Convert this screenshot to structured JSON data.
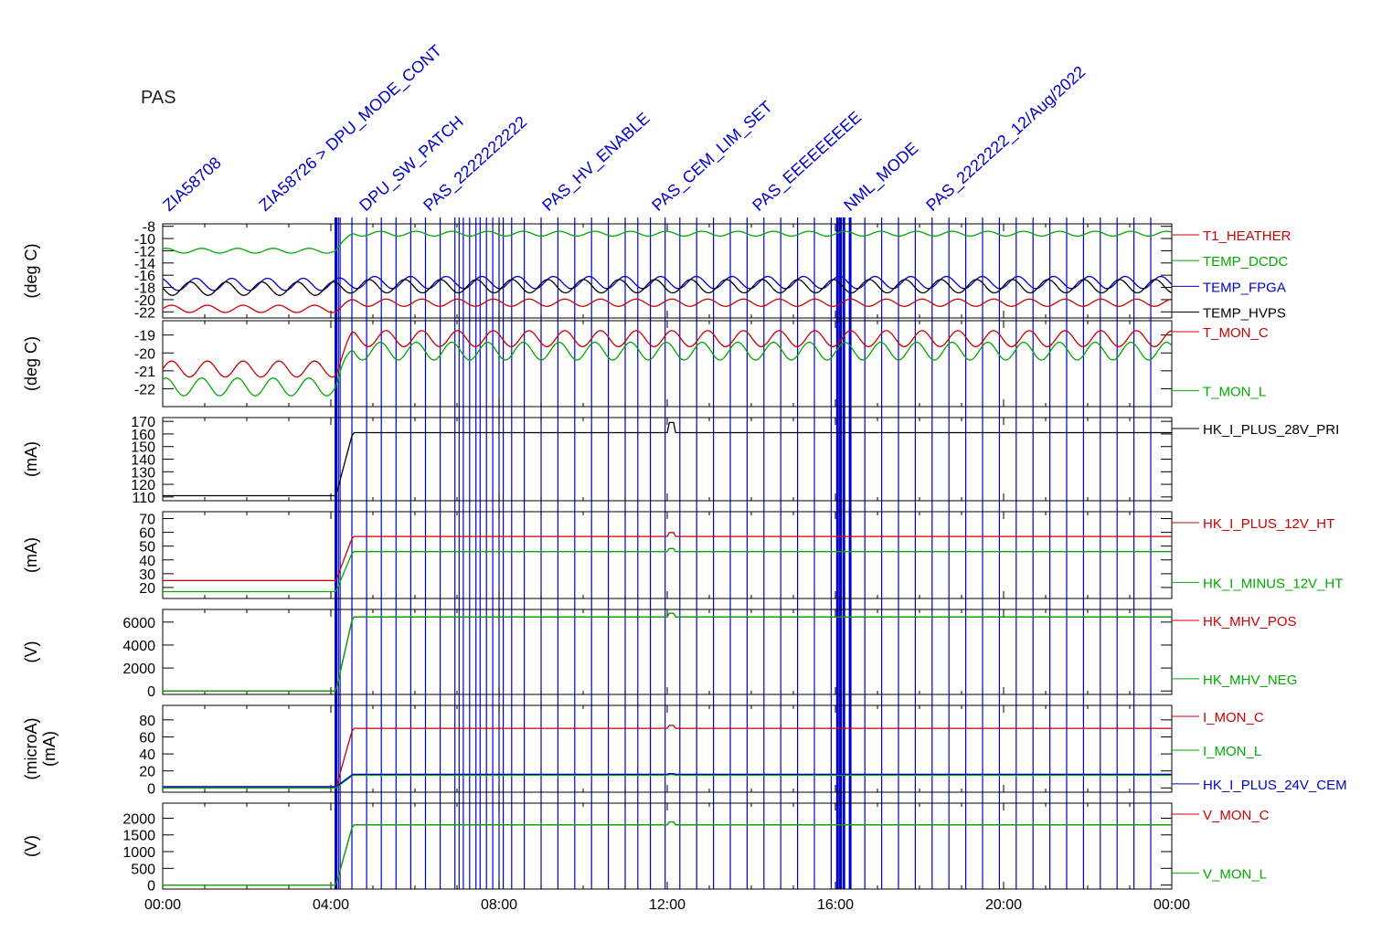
{
  "instrument": "PAS",
  "header_annotations": [
    "ZIA58708",
    "ZIA58726 > DPU_MODE_CONT",
    "DPU_SW_PATCH",
    "PAS_2222222222",
    "PAS_HV_ENABLE",
    "PAS_CEM_LIM_SET",
    "PAS_EEEEEEEEE",
    "NML_MODE",
    "PAS_2222222_12/Aug/2022"
  ],
  "time_axis": {
    "ticks": [
      "00:00",
      "04:00",
      "08:00",
      "12:00",
      "16:00",
      "20:00",
      "00:00"
    ],
    "range_hours": [
      0,
      24
    ]
  },
  "colors": {
    "red": "#cc0000",
    "green": "#00aa00",
    "blue": "#0000cc",
    "black": "#000000",
    "event": "#0000cc"
  },
  "chart_data": [
    {
      "type": "line",
      "ylabel": "(deg C)",
      "ylim": [
        -23,
        -7.6
      ],
      "yticks": [
        "-8",
        "-10",
        "-12",
        "-14",
        "-16",
        "-18",
        "-20",
        "-22"
      ],
      "yticks_values": [
        -8,
        -10,
        -12,
        -14,
        -16,
        -18,
        -20,
        -22
      ],
      "series": [
        {
          "name": "T1_HEATHER",
          "color": "red",
          "before": -21.5,
          "after": -20.5,
          "amp": 0.6
        },
        {
          "name": "TEMP_DCDC",
          "color": "green",
          "before": -12.0,
          "after": -9.2,
          "amp": 0.4
        },
        {
          "name": "TEMP_FPGA",
          "color": "blue",
          "before": -17.5,
          "after": -17.2,
          "amp": 1.0
        },
        {
          "name": "TEMP_HVPS",
          "color": "black",
          "before": -18.2,
          "after": -17.8,
          "amp": 1.1
        }
      ]
    },
    {
      "type": "line",
      "ylabel": "(deg C)",
      "ylim": [
        -23.0,
        -18.2
      ],
      "yticks": [
        "-19",
        "-20",
        "-21",
        "-22"
      ],
      "yticks_values": [
        -19,
        -20,
        -21,
        -22
      ],
      "series": [
        {
          "name": "T_MON_C",
          "color": "red",
          "before": -20.9,
          "after": -19.2,
          "amp": 0.45
        },
        {
          "name": "T_MON_L",
          "color": "green",
          "before": -21.9,
          "after": -19.9,
          "amp": 0.5
        }
      ]
    },
    {
      "type": "line",
      "ylabel": "(mA)",
      "ylim": [
        107,
        173
      ],
      "yticks": [
        "170",
        "160",
        "150",
        "140",
        "130",
        "120",
        "110"
      ],
      "yticks_values": [
        170,
        160,
        150,
        140,
        130,
        120,
        110
      ],
      "series": [
        {
          "name": "HK_I_PLUS_28V_PRI",
          "color": "black",
          "before": 111,
          "after": 161,
          "amp": 0
        }
      ]
    },
    {
      "type": "line",
      "ylabel": "(mA)",
      "ylim": [
        12,
        75
      ],
      "yticks": [
        "70",
        "60",
        "50",
        "40",
        "30",
        "20"
      ],
      "yticks_values": [
        70,
        60,
        50,
        40,
        30,
        20
      ],
      "series": [
        {
          "name": "HK_I_PLUS_12V_HT",
          "color": "red",
          "before": 25,
          "after": 57,
          "amp": 0
        },
        {
          "name": "HK_I_MINUS_12V_HT",
          "color": "green",
          "before": 17,
          "after": 46,
          "amp": 0
        }
      ]
    },
    {
      "type": "line",
      "ylabel": "(V)",
      "ylim": [
        -300,
        7100
      ],
      "yticks": [
        "6000",
        "4000",
        "2000",
        "0"
      ],
      "yticks_values": [
        6000,
        4000,
        2000,
        0
      ],
      "series": [
        {
          "name": "HK_MHV_POS",
          "color": "red",
          "before": 0,
          "after": 6450,
          "amp": 0
        },
        {
          "name": "HK_MHV_NEG",
          "color": "green",
          "before": 0,
          "after": 6450,
          "amp": 0
        }
      ]
    },
    {
      "type": "line",
      "ylabel": "(microA)",
      "ylabel2": "(mA)",
      "ylim": [
        -5,
        97
      ],
      "yticks": [
        "80",
        "60",
        "40",
        "20",
        "0"
      ],
      "yticks_values": [
        80,
        60,
        40,
        20,
        0
      ],
      "series": [
        {
          "name": "I_MON_C",
          "color": "red",
          "before": 0,
          "after": 70,
          "amp": 0
        },
        {
          "name": "I_MON_L",
          "color": "green",
          "before": 0,
          "after": 15,
          "amp": 0
        },
        {
          "name": "HK_I_PLUS_24V_CEM",
          "color": "blue",
          "before": 1.5,
          "after": 16,
          "amp": 0
        }
      ]
    },
    {
      "type": "line",
      "ylabel": "(V)",
      "ylim": [
        -120,
        2450
      ],
      "yticks": [
        "2000",
        "1500",
        "1000",
        "500",
        "0"
      ],
      "yticks_values": [
        2000,
        1500,
        1000,
        500,
        0
      ],
      "series": [
        {
          "name": "V_MON_C",
          "color": "red",
          "before": 0,
          "after": 1800,
          "amp": 0
        },
        {
          "name": "V_MON_L",
          "color": "green",
          "before": 0,
          "after": 1800,
          "amp": 0
        }
      ]
    }
  ],
  "event_times_hours": [
    4.12,
    4.18,
    4.22,
    4.5,
    4.85,
    5.2,
    5.55,
    5.9,
    6.25,
    6.6,
    6.95,
    7.05,
    7.15,
    7.3,
    7.45,
    7.55,
    7.7,
    7.85,
    8.0,
    8.1,
    8.3,
    8.6,
    9.0,
    9.4,
    9.8,
    10.2,
    10.6,
    11.0,
    11.3,
    11.6,
    11.95,
    12.3,
    12.7,
    13.1,
    13.5,
    13.9,
    14.3,
    14.7,
    15.1,
    15.5,
    15.9,
    16.05,
    16.12,
    16.2,
    16.35,
    16.7,
    17.1,
    17.5,
    17.9,
    18.3,
    18.7,
    19.1,
    19.5,
    19.9,
    20.3,
    20.7,
    21.1,
    21.5,
    21.9,
    22.3,
    22.7,
    23.1,
    23.5
  ],
  "transition_hour": 4.12,
  "spike_hour": 12.1
}
